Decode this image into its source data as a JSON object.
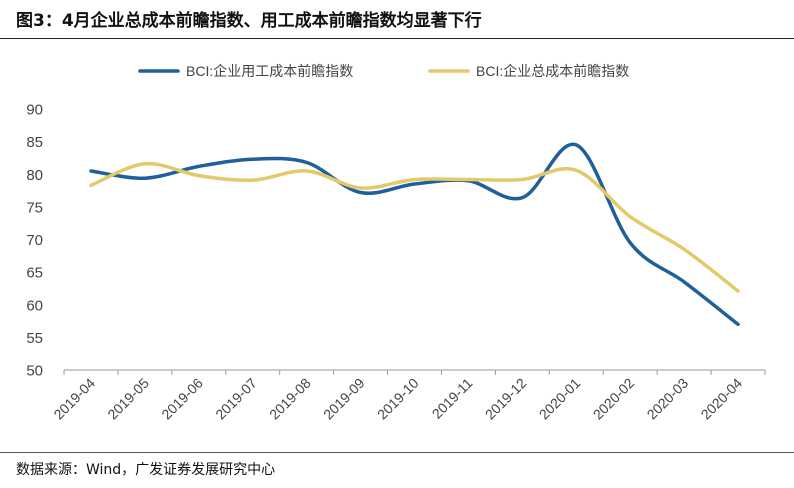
{
  "title": "图3：4月企业总成本前瞻指数、用工成本前瞻指数均显著下行",
  "source": "数据来源：Wind，广发证券发展研究中心",
  "chart_data": {
    "type": "line",
    "title": "",
    "xlabel": "",
    "ylabel": "",
    "categories": [
      "2019-04",
      "2019-05",
      "2019-06",
      "2019-07",
      "2019-08",
      "2019-09",
      "2019-10",
      "2019-11",
      "2019-12",
      "2020-01",
      "2020-02",
      "2020-03",
      "2020-04"
    ],
    "ylim": [
      50,
      90
    ],
    "yticks": [
      90,
      85,
      80,
      75,
      70,
      65,
      60,
      55,
      50
    ],
    "grid": false,
    "legend_position": "top-center",
    "series": [
      {
        "name": "BCI:企业用工成本前瞻指数",
        "color": "#1f5f9a",
        "values": [
          80.5,
          79.4,
          81.2,
          82.3,
          81.8,
          77.2,
          78.5,
          79.0,
          76.4,
          84.5,
          69.5,
          63.5,
          57.0
        ]
      },
      {
        "name": "BCI:企业总成本前瞻指数",
        "color": "#e3c96a",
        "values": [
          78.3,
          81.6,
          79.8,
          79.1,
          80.5,
          77.9,
          79.2,
          79.2,
          79.2,
          80.6,
          73.5,
          68.5,
          62.1
        ]
      }
    ]
  }
}
